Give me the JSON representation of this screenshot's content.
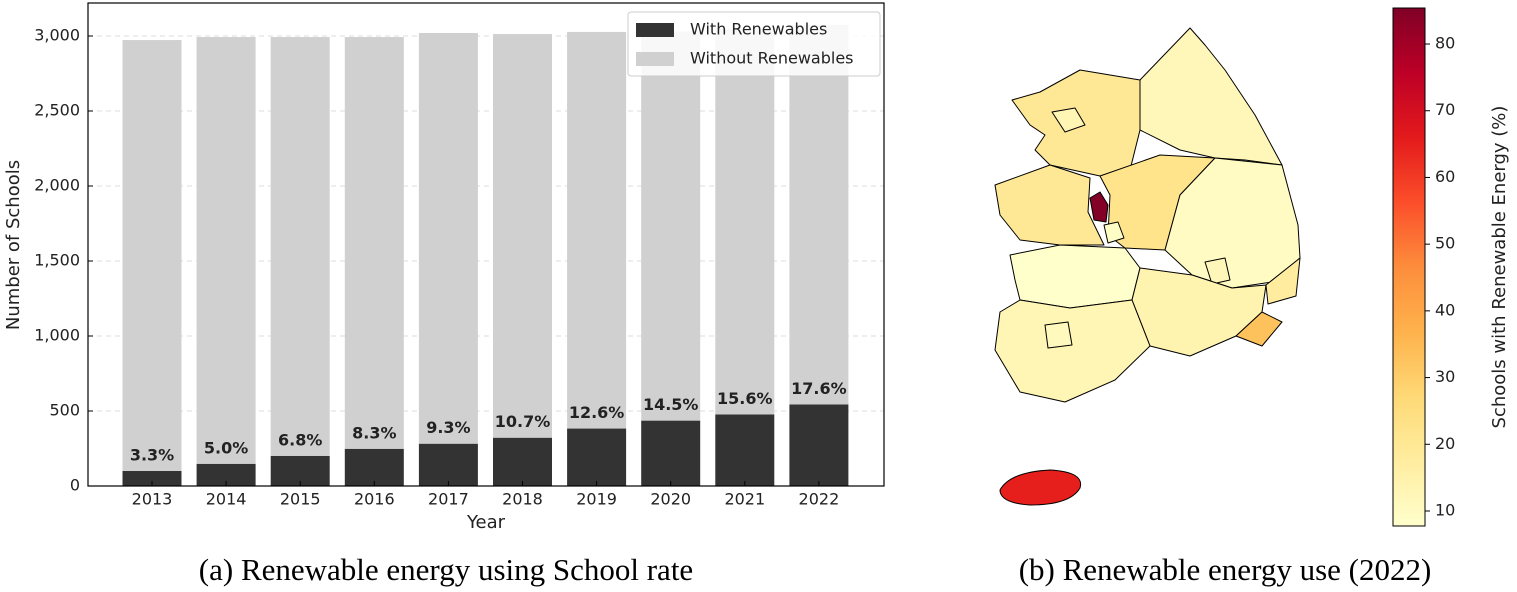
{
  "chart_data": [
    {
      "type": "stacked-bar",
      "xlabel": "Year",
      "ylabel": "Number of Schools",
      "caption": "(a) Renewable energy using School rate",
      "categories": [
        "2013",
        "2014",
        "2015",
        "2016",
        "2017",
        "2018",
        "2019",
        "2020",
        "2021",
        "2022"
      ],
      "series": [
        {
          "name": "With Renewables",
          "color": "#333333",
          "values": [
            100,
            148,
            201,
            248,
            282,
            322,
            383,
            436,
            477,
            544
          ]
        },
        {
          "name": "Without Renewables",
          "color": "#d0d0d0",
          "values": [
            2873,
            2845,
            2792,
            2745,
            2738,
            2691,
            2644,
            2594,
            2573,
            2530
          ]
        }
      ],
      "rate_labels": {
        "values": [
          3.3,
          5.0,
          6.8,
          8.3,
          9.3,
          10.7,
          12.6,
          14.5,
          15.6,
          17.6
        ],
        "value_labels": [
          "3.3%",
          "5.0%",
          "6.8%",
          "8.3%",
          "9.3%",
          "10.7%",
          "12.6%",
          "14.5%",
          "15.6%",
          "17.6%"
        ]
      },
      "ylim": [
        0,
        3220
      ],
      "yticks": [
        0,
        500,
        {
          "value": 1000,
          "label": "1,000"
        },
        {
          "value": 1500,
          "label": "1,500"
        },
        {
          "value": 2000,
          "label": "2,000"
        },
        {
          "value": 2500,
          "label": "2,500"
        },
        {
          "value": 3000,
          "label": "3,000"
        }
      ],
      "grid": true,
      "legend": "upper right"
    },
    {
      "type": "choropleth",
      "caption": "(b) Renewable energy use (2022)",
      "colorbar_label": "Schools with Renewable Energy (%)",
      "colormap": "YlOrRd",
      "values": [
        12,
        20,
        13,
        20,
        22,
        85,
        9,
        8,
        10,
        12,
        14,
        18,
        33,
        13,
        11,
        65
      ],
      "clim": [
        7.75,
        85.4
      ],
      "cticks": [
        10,
        20,
        30,
        40,
        50,
        60,
        70,
        80
      ]
    }
  ]
}
